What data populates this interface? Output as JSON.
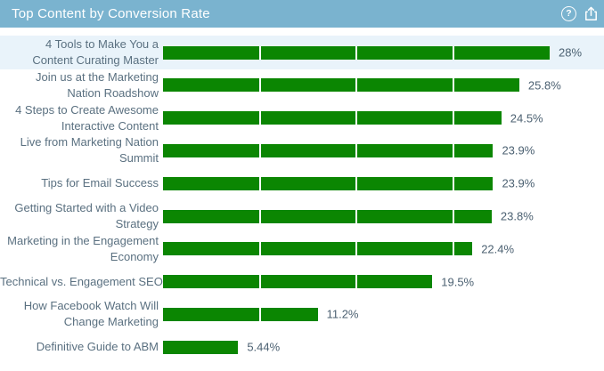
{
  "panel": {
    "title": "Top Content by Conversion Rate",
    "help_glyph": "?"
  },
  "colors": {
    "header_bg": "#7ab3cf",
    "header_text": "#ffffff",
    "bar_green": "#0b8602",
    "row_highlight_bg": "#e9f3fa",
    "label_text": "#5a7080",
    "value_text": "#4c6172",
    "divider_white": "#ffffff"
  },
  "chart_data": {
    "type": "bar",
    "orientation": "horizontal",
    "title": "Top Content by Conversion Rate",
    "xlabel": "",
    "ylabel": "",
    "xlim": [
      0,
      28
    ],
    "gridlines_x": [
      7,
      14,
      21
    ],
    "grid": true,
    "legend": false,
    "highlighted_row_index": 0,
    "categories": [
      "4 Tools to Make You a\nContent Curating Master",
      "Join us at the Marketing\nNation Roadshow",
      "4 Steps to Create Awesome\nInteractive Content",
      "Live from Marketing Nation\nSummit",
      "Tips for Email Success",
      "Getting Started with a Video\nStrategy",
      "Marketing in the Engagement\nEconomy",
      "Technical vs. Engagement SEO",
      "How Facebook Watch Will\nChange Marketing",
      "Definitive Guide to ABM"
    ],
    "values": [
      28,
      25.8,
      24.5,
      23.9,
      23.9,
      23.8,
      22.4,
      19.5,
      11.2,
      5.44
    ],
    "value_labels": [
      "28%",
      "25.8%",
      "24.5%",
      "23.9%",
      "23.9%",
      "23.8%",
      "22.4%",
      "19.5%",
      "11.2%",
      "5.44%"
    ]
  }
}
